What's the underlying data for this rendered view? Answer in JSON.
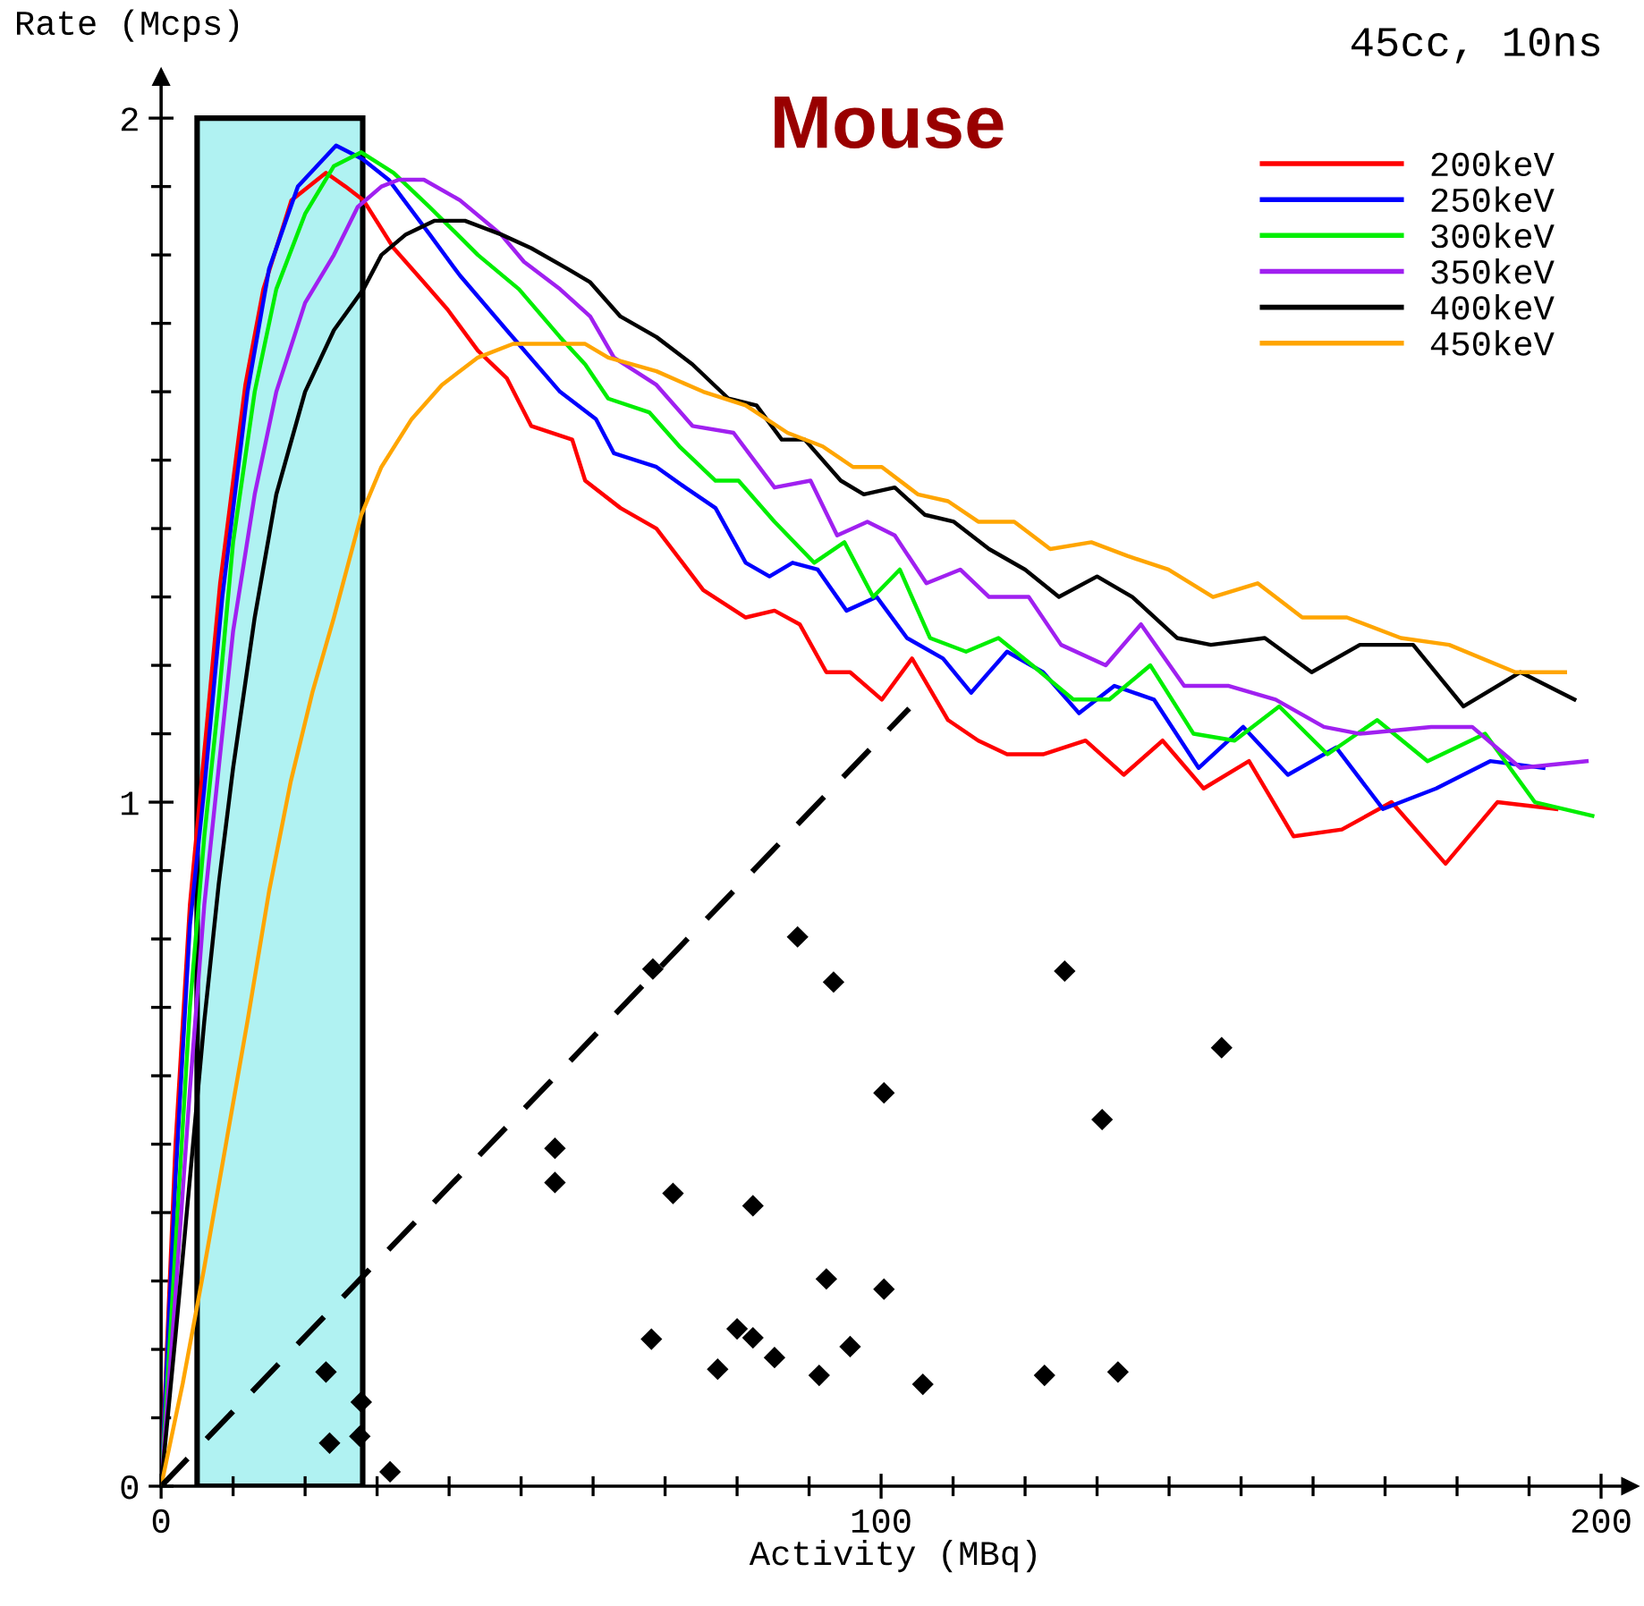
{
  "chart_data": {
    "type": "line",
    "title": "Mouse",
    "xlabel": "Activity (MBq)",
    "ylabel": "Rate (Mcps)",
    "annotations": [
      "45cc, 10ns"
    ],
    "xlim": [
      0,
      204
    ],
    "ylim": [
      0,
      2.06
    ],
    "xticks": [
      0,
      100,
      200
    ],
    "yticks": [
      0,
      1,
      2
    ],
    "grid": false,
    "legend": "top right",
    "marker": "none",
    "line_style": "solid",
    "bands": [
      {
        "axis": "x",
        "from": 5,
        "to": 28,
        "color": "#b0f2f2"
      }
    ],
    "series": [
      {
        "name": "200keV",
        "color": "#ff0000",
        "x": [
          0,
          2,
          4,
          5.7,
          8.2,
          11.7,
          14.2,
          18.1,
          22.9,
          25.6,
          28.1,
          32.3,
          36.5,
          39.8,
          44,
          48,
          51.4,
          57.1,
          58.9,
          63.8,
          68.8,
          75.3,
          81.2,
          85.2,
          88.7,
          92.4,
          95.7,
          100.1,
          104.3,
          109.3,
          113.5,
          117.5,
          122.5,
          128.4,
          133.7,
          139.1,
          144.8,
          151.1,
          157.3,
          164,
          170.9,
          178.4,
          185.6,
          193.8
        ],
        "values": [
          0,
          0.5,
          0.85,
          1.04,
          1.32,
          1.61,
          1.75,
          1.88,
          1.92,
          1.9,
          1.88,
          1.81,
          1.76,
          1.72,
          1.66,
          1.62,
          1.55,
          1.53,
          1.47,
          1.43,
          1.4,
          1.31,
          1.27,
          1.28,
          1.26,
          1.19,
          1.19,
          1.15,
          1.21,
          1.12,
          1.09,
          1.07,
          1.07,
          1.09,
          1.04,
          1.09,
          1.02,
          1.06,
          0.95,
          0.96,
          1.0,
          0.91,
          1.0,
          0.99
        ]
      },
      {
        "name": "250keV",
        "color": "#0000ff",
        "x": [
          0,
          2,
          4,
          6,
          8.5,
          12,
          15,
          19,
          24.3,
          28,
          31.6,
          37.3,
          41.5,
          48,
          55.4,
          60.4,
          62.9,
          68.8,
          72.8,
          77,
          81.2,
          84.5,
          87.7,
          91.2,
          95.2,
          99.4,
          103.6,
          108.6,
          112.5,
          117.5,
          122.5,
          127.5,
          132.4,
          137.9,
          144.1,
          150.3,
          156.5,
          163.2,
          169.7,
          177.1,
          184.6,
          192
        ],
        "values": [
          0,
          0.45,
          0.82,
          1.02,
          1.3,
          1.6,
          1.78,
          1.9,
          1.96,
          1.94,
          1.91,
          1.83,
          1.77,
          1.69,
          1.6,
          1.56,
          1.51,
          1.49,
          1.46,
          1.43,
          1.35,
          1.33,
          1.35,
          1.34,
          1.28,
          1.3,
          1.24,
          1.21,
          1.16,
          1.22,
          1.19,
          1.13,
          1.17,
          1.15,
          1.05,
          1.11,
          1.04,
          1.08,
          0.99,
          1.02,
          1.06,
          1.05
        ]
      },
      {
        "name": "300keV",
        "color": "#00ee00",
        "x": [
          0,
          2,
          4,
          6,
          8,
          10,
          13,
          16,
          20,
          24,
          27.8,
          32.3,
          37.3,
          44,
          49.7,
          55.4,
          58.9,
          62.1,
          67.8,
          72,
          77,
          80.2,
          85.2,
          90.7,
          94.9,
          98.9,
          102.6,
          106.8,
          111.8,
          116.3,
          121,
          126.7,
          131.7,
          137.4,
          143.4,
          149.1,
          155.3,
          162,
          168.9,
          175.9,
          183.9,
          190.8,
          198.8
        ],
        "values": [
          0,
          0.35,
          0.7,
          0.95,
          1.15,
          1.38,
          1.6,
          1.75,
          1.86,
          1.93,
          1.95,
          1.92,
          1.87,
          1.8,
          1.75,
          1.68,
          1.64,
          1.59,
          1.57,
          1.52,
          1.47,
          1.47,
          1.41,
          1.35,
          1.38,
          1.3,
          1.34,
          1.24,
          1.22,
          1.24,
          1.2,
          1.15,
          1.15,
          1.2,
          1.1,
          1.09,
          1.14,
          1.07,
          1.12,
          1.06,
          1.1,
          1.0,
          0.98
        ]
      },
      {
        "name": "350keV",
        "color": "#a020f0",
        "x": [
          0,
          2,
          4,
          6,
          8,
          10,
          13,
          16,
          20,
          24,
          27.3,
          30.6,
          33,
          36.5,
          41.5,
          47.2,
          50.4,
          55.4,
          59.6,
          62.9,
          68.8,
          73.8,
          79.5,
          85.2,
          90.2,
          93.9,
          98.1,
          101.9,
          106.3,
          111,
          115,
          120.5,
          125,
          131.2,
          136.1,
          142.1,
          148.3,
          154.8,
          161.5,
          166.5,
          176.4,
          182.1,
          188.8,
          198
        ],
        "values": [
          0,
          0.28,
          0.58,
          0.85,
          1.05,
          1.25,
          1.45,
          1.6,
          1.73,
          1.8,
          1.87,
          1.9,
          1.91,
          1.91,
          1.88,
          1.83,
          1.79,
          1.75,
          1.71,
          1.65,
          1.61,
          1.55,
          1.54,
          1.46,
          1.47,
          1.39,
          1.41,
          1.39,
          1.32,
          1.34,
          1.3,
          1.3,
          1.23,
          1.2,
          1.26,
          1.17,
          1.17,
          1.15,
          1.11,
          1.1,
          1.11,
          1.11,
          1.05,
          1.06
        ]
      },
      {
        "name": "400keV",
        "color": "#000000",
        "x": [
          0,
          2,
          4,
          6,
          8,
          10,
          13,
          16,
          20,
          24,
          28.1,
          30.6,
          34,
          38,
          42.2,
          47.2,
          51.4,
          56.4,
          59.6,
          63.8,
          68.8,
          73.8,
          78.8,
          82.7,
          86.2,
          89.4,
          94.4,
          97.6,
          101.9,
          106.1,
          110.1,
          115,
          120,
          124.7,
          130,
          134.9,
          141.1,
          145.8,
          153.3,
          159.8,
          166.5,
          173.9,
          180.9,
          188.8,
          196.3
        ],
        "values": [
          0,
          0.22,
          0.45,
          0.68,
          0.88,
          1.05,
          1.27,
          1.45,
          1.6,
          1.69,
          1.75,
          1.8,
          1.83,
          1.85,
          1.85,
          1.83,
          1.81,
          1.78,
          1.76,
          1.71,
          1.68,
          1.64,
          1.59,
          1.58,
          1.53,
          1.53,
          1.47,
          1.45,
          1.46,
          1.42,
          1.41,
          1.37,
          1.34,
          1.3,
          1.33,
          1.3,
          1.24,
          1.23,
          1.24,
          1.19,
          1.23,
          1.23,
          1.14,
          1.19,
          1.15
        ]
      },
      {
        "name": "450keV",
        "color": "#ffa500",
        "x": [
          0,
          3,
          6,
          9,
          12,
          15,
          18,
          21,
          24,
          27.8,
          30.6,
          34.8,
          39,
          44,
          48.9,
          53.9,
          58.9,
          62.1,
          68.8,
          75.3,
          81.2,
          87,
          91.9,
          96.1,
          100.1,
          105.1,
          109.3,
          113.5,
          118.5,
          123.5,
          129.2,
          134.2,
          139.9,
          146.1,
          152.3,
          158.5,
          164.7,
          172.2,
          178.9,
          188.1,
          195
        ],
        "values": [
          0,
          0.15,
          0.32,
          0.5,
          0.68,
          0.87,
          1.03,
          1.16,
          1.27,
          1.42,
          1.49,
          1.56,
          1.61,
          1.65,
          1.67,
          1.67,
          1.67,
          1.65,
          1.63,
          1.6,
          1.58,
          1.54,
          1.52,
          1.49,
          1.49,
          1.45,
          1.44,
          1.41,
          1.41,
          1.37,
          1.38,
          1.36,
          1.34,
          1.3,
          1.32,
          1.27,
          1.27,
          1.24,
          1.23,
          1.19,
          1.19
        ]
      },
      {
        "type": "line",
        "line_style": "dashed",
        "color": "#000000",
        "x": [
          0,
          103.9
        ],
        "values": [
          0,
          1.137
        ]
      },
      {
        "type": "scatter",
        "marker": "diamond",
        "color": "#000000",
        "x": [
          22.9,
          23.4,
          27.6,
          27.8,
          31.8,
          54.7,
          54.7,
          71.1,
          68.3,
          68.1,
          77.3,
          88.4,
          93.4,
          125.5,
          147.3,
          100.4,
          130.7,
          82.2,
          92.4,
          100.4,
          80.0,
          82.2,
          85.2,
          91.4,
          95.7,
          105.8,
          122.7,
          132.9
        ],
        "values": [
          0.167,
          0.063,
          0.073,
          0.123,
          0.021,
          0.494,
          0.444,
          0.428,
          0.756,
          0.215,
          0.171,
          0.803,
          0.737,
          0.753,
          0.641,
          0.575,
          0.536,
          0.41,
          0.303,
          0.288,
          0.23,
          0.217,
          0.188,
          0.162,
          0.204,
          0.149,
          0.162,
          0.167
        ]
      }
    ]
  }
}
